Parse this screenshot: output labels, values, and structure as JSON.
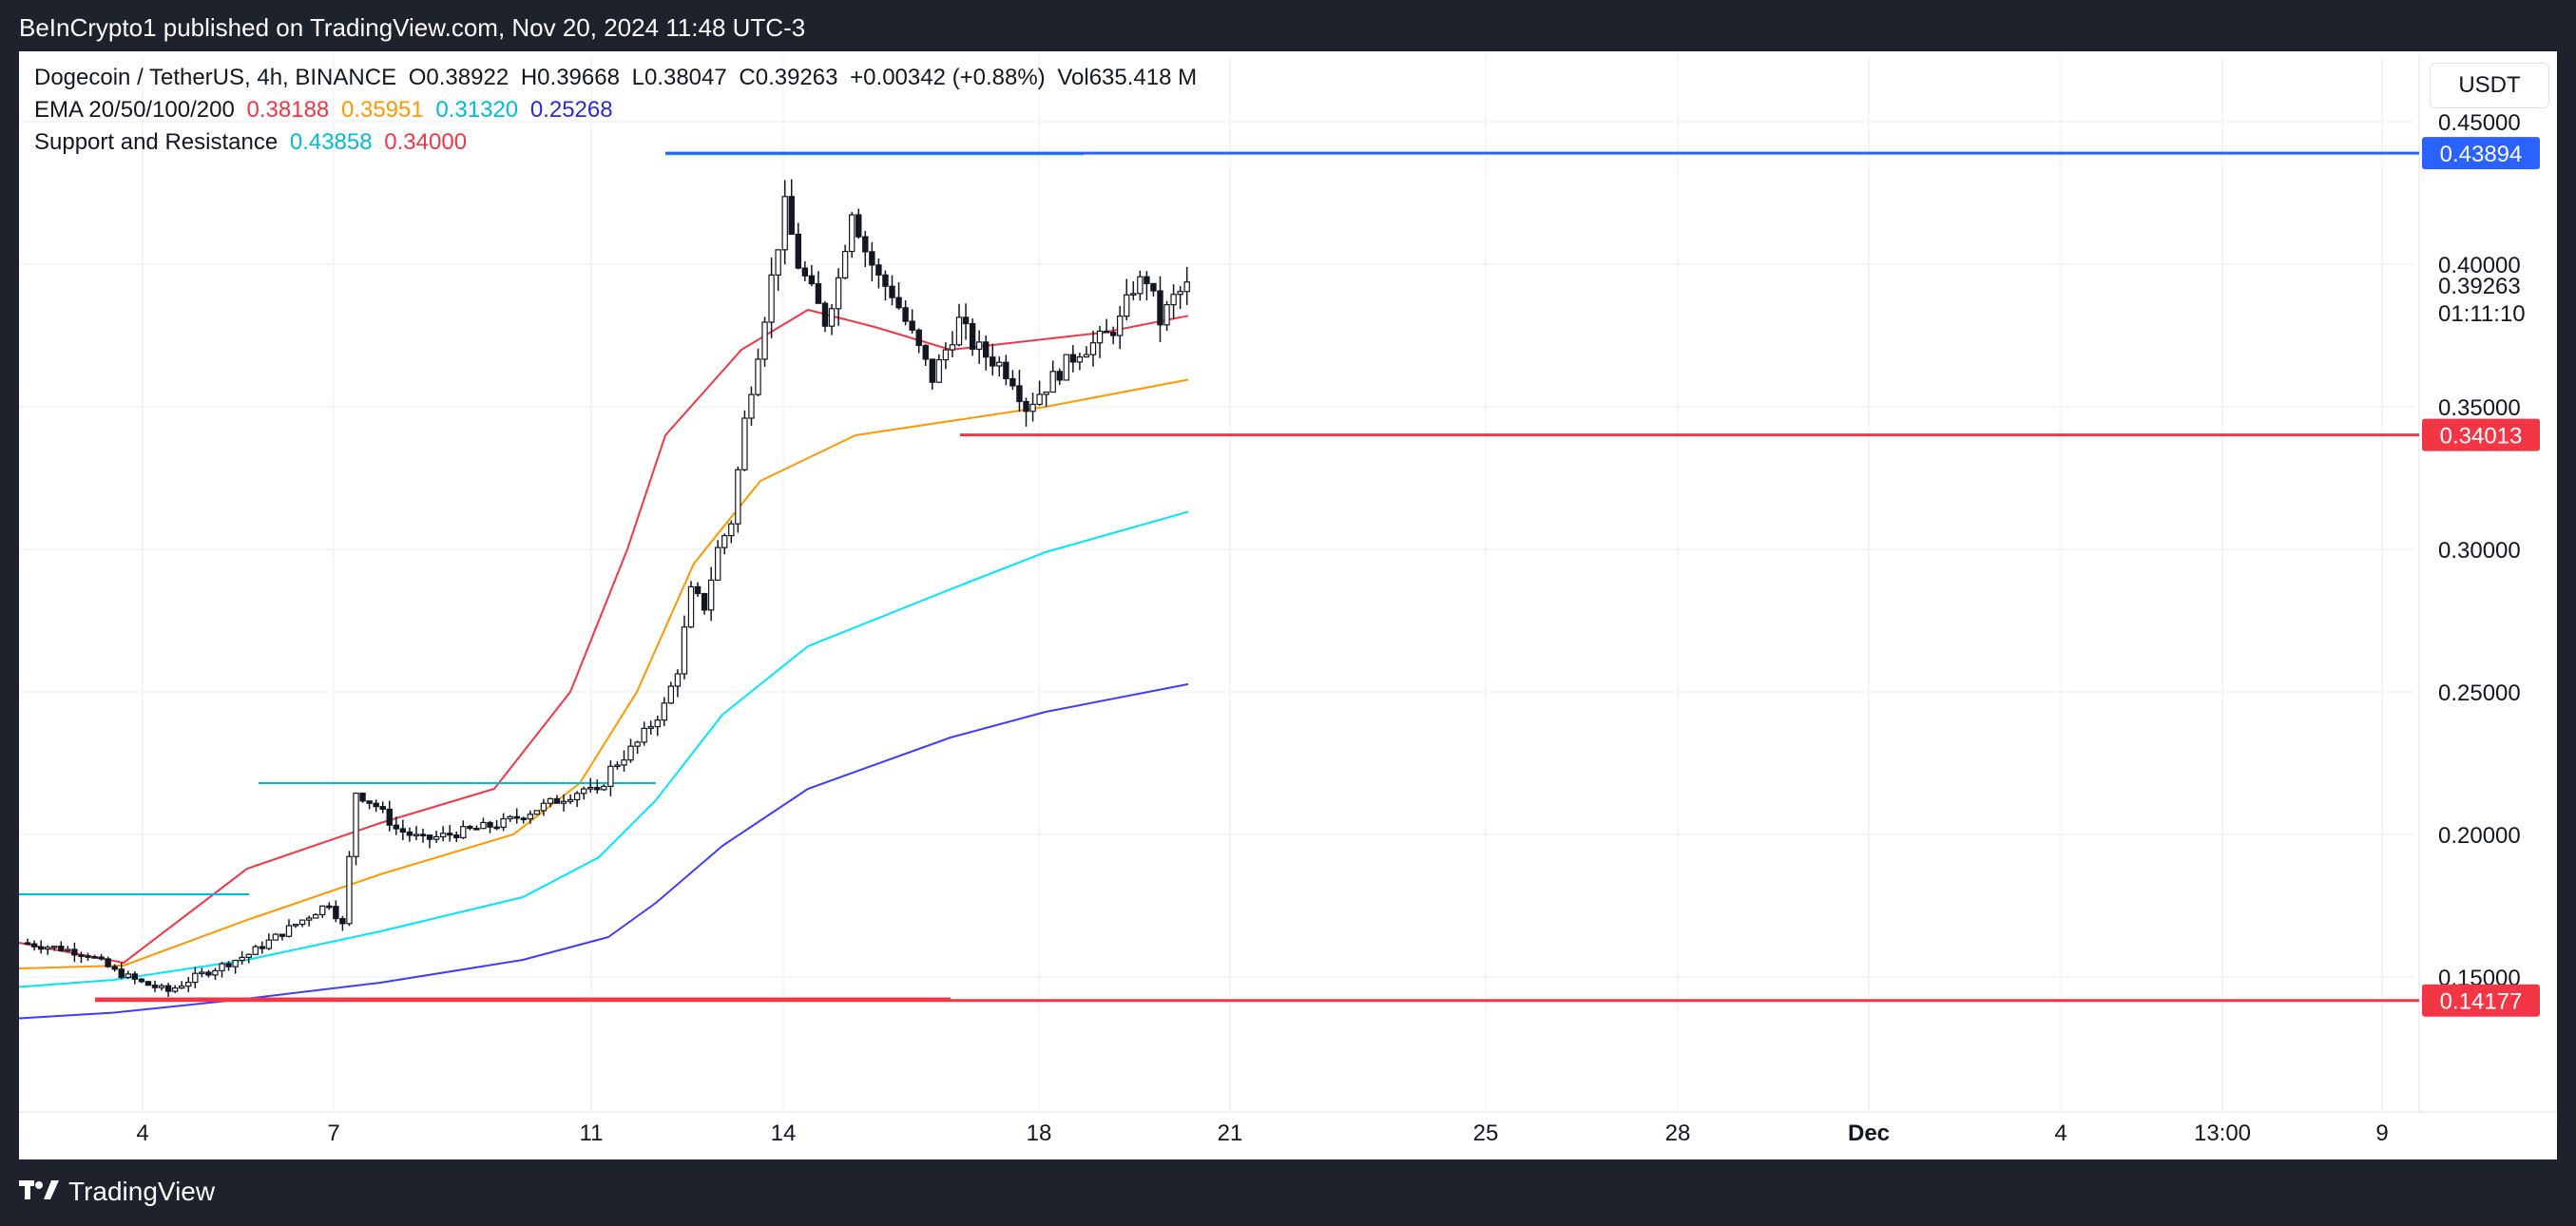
{
  "header": {
    "publisher": "BeInCrypto1 published on TradingView.com, Nov 20, 2024 11:48 UTC-3"
  },
  "footer": {
    "brand": "TradingView"
  },
  "legend": {
    "symbol": "Dogecoin / TetherUS, 4h, BINANCE",
    "open": "O0.38922",
    "high": "H0.39668",
    "low": "L0.38047",
    "close": "C0.39263",
    "change": "+0.00342 (+0.88%)",
    "volume": "Vol635.418 M",
    "ema_label": "EMA 20/50/100/200",
    "ema20": "0.38188",
    "ema50": "0.35951",
    "ema100": "0.31320",
    "ema200": "0.25268",
    "sr_label": "Support and Resistance",
    "sr_high": "0.43858",
    "sr_low": "0.34000"
  },
  "currency_button": "USDT",
  "price_tags": {
    "resistance": "0.43894",
    "last_price": "0.39263",
    "countdown": "01:11:10",
    "support_mid": "0.34013",
    "support_low": "0.14177"
  },
  "colors": {
    "ema20": "#f23645",
    "ema50": "#ff9800",
    "ema100": "#00e5ff",
    "ema200": "#3d3dff",
    "resistance_line": "#2962ff",
    "support_line": "#f23645",
    "sr_teal": "#00bcd4"
  },
  "chart_data": {
    "type": "candlestick",
    "title": "Dogecoin / TetherUS, 4h, BINANCE",
    "y_ticks": [
      "0.45000",
      "0.40000",
      "0.35000",
      "0.30000",
      "0.25000",
      "0.20000",
      "0.15000"
    ],
    "x_ticks": [
      "4",
      "7",
      "11",
      "14",
      "18",
      "21",
      "25",
      "28",
      "Dec",
      "4",
      "13:00",
      "9"
    ],
    "ylim": [
      0.1,
      0.47
    ],
    "grid": true,
    "horizontal_levels": [
      {
        "value": 0.43894,
        "label": "0.43894",
        "color": "#2962ff"
      },
      {
        "value": 0.34013,
        "label": "0.34013",
        "color": "#f23645"
      },
      {
        "value": 0.14177,
        "label": "0.14177",
        "color": "#f23645"
      }
    ],
    "ema_series": [
      {
        "name": "EMA 20",
        "last": 0.38188
      },
      {
        "name": "EMA 50",
        "last": 0.35951
      },
      {
        "name": "EMA 100",
        "last": 0.3132
      },
      {
        "name": "EMA 200",
        "last": 0.25268
      }
    ]
  }
}
